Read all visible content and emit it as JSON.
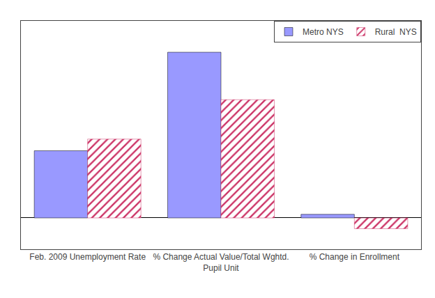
{
  "chart_data": {
    "type": "bar",
    "categories": [
      "Feb. 2009 Unemployment Rate",
      "% Change Actual Value/Total Wghtd.\nPupil Unit",
      "% Change in Enrollment"
    ],
    "series": [
      {
        "name": "Metro NYS",
        "color": "#9999ff",
        "values": [
          7.5,
          18.5,
          0.4
        ]
      },
      {
        "name": "Rural  NYS",
        "color": "#cc3366",
        "values": [
          8.8,
          13.2,
          -1.2
        ],
        "marker": "hatch"
      }
    ],
    "ylim": [
      -3.5,
      22
    ],
    "tick_labels": "x",
    "grid": false,
    "legend": "upper right"
  }
}
